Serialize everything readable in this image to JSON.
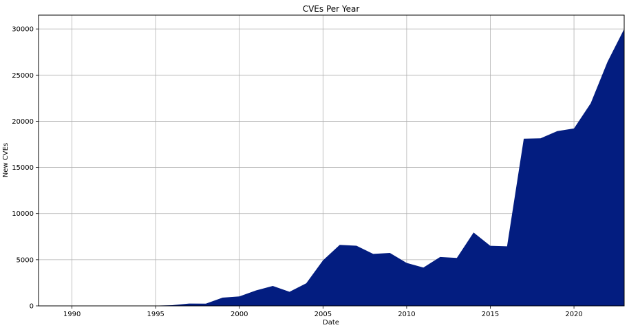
{
  "chart_data": {
    "type": "area",
    "title": "CVEs Per Year",
    "xlabel": "Date",
    "ylabel": "New CVEs",
    "xlim": [
      1988,
      2023
    ],
    "ylim": [
      0,
      31500
    ],
    "grid": true,
    "legend": "none",
    "fill_color": "#031d80",
    "x_ticks": [
      1990,
      1995,
      2000,
      2005,
      2010,
      2015,
      2020
    ],
    "y_ticks": [
      0,
      5000,
      10000,
      15000,
      20000,
      25000,
      30000
    ],
    "x": [
      1988,
      1989,
      1990,
      1991,
      1992,
      1993,
      1994,
      1995,
      1996,
      1997,
      1998,
      1999,
      2000,
      2001,
      2002,
      2003,
      2004,
      2005,
      2006,
      2007,
      2008,
      2009,
      2010,
      2011,
      2012,
      2013,
      2014,
      2015,
      2016,
      2017,
      2018,
      2019,
      2020,
      2021,
      2022,
      2023
    ],
    "values": [
      2,
      3,
      11,
      15,
      13,
      13,
      25,
      25,
      75,
      252,
      246,
      894,
      1020,
      1677,
      2156,
      1527,
      2451,
      4935,
      6610,
      6520,
      5632,
      5736,
      4652,
      4155,
      5297,
      5191,
      7946,
      6504,
      6454,
      18113,
      18154,
      18938,
      19222,
      21950,
      26431,
      30000
    ]
  }
}
